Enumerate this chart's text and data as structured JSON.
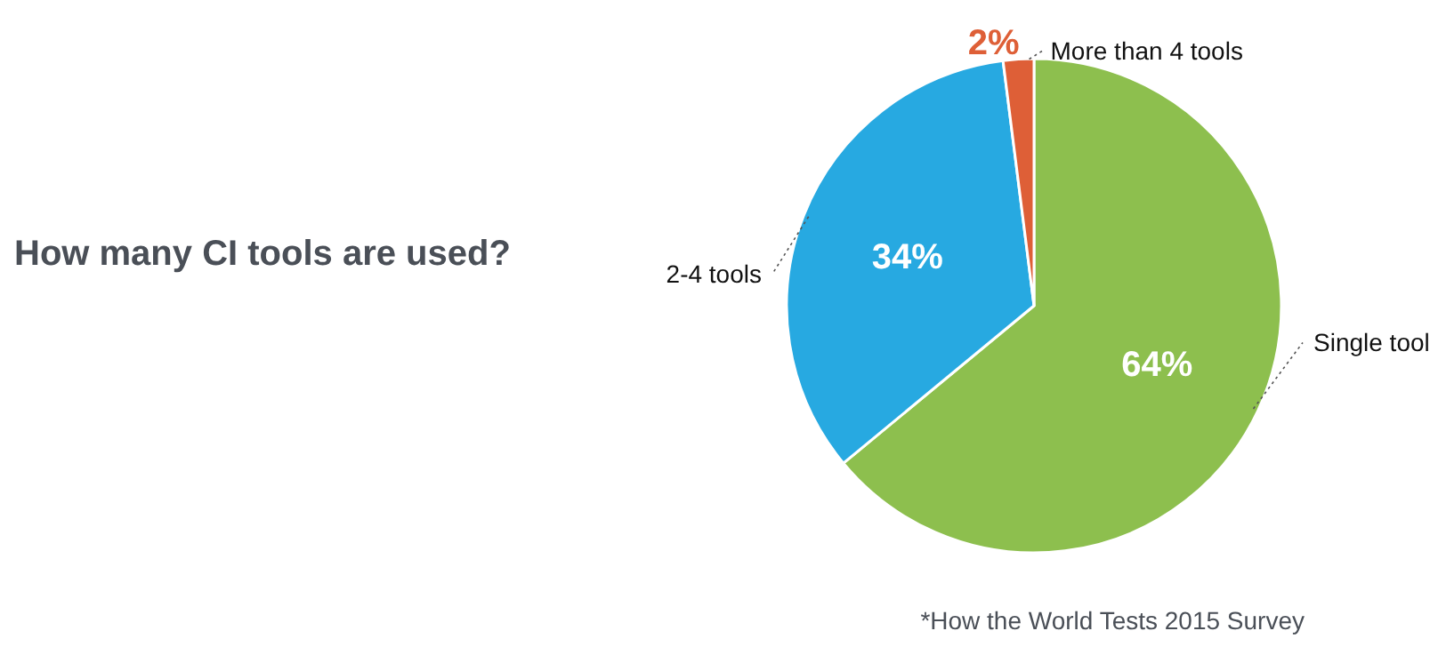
{
  "chart_data": {
    "type": "pie",
    "title": "How many CI tools are used?",
    "categories": [
      "Single tool",
      "2-4 tools",
      "More than 4 tools"
    ],
    "values": [
      64,
      34,
      2
    ],
    "colors": [
      "#8dbf4e",
      "#27a9e1",
      "#de5f37"
    ],
    "value_labels": [
      "64%",
      "34%",
      "2%"
    ],
    "annotations": [
      "*How the World Tests 2015 Survey"
    ]
  }
}
